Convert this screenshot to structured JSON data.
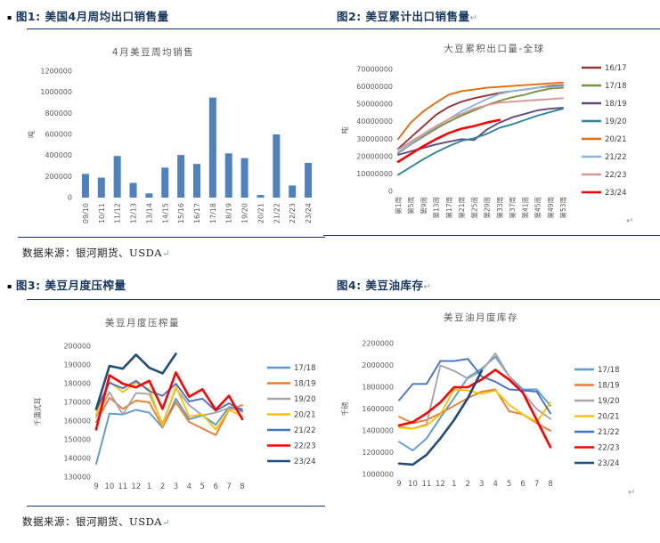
{
  "headers": {
    "fig1": {
      "label": "图1: 美国4月周均出口销售量"
    },
    "fig2": {
      "label": "图2: 美豆累计出口销售量"
    },
    "fig3": {
      "label": "图3: 美豆月度压榨量"
    },
    "fig4": {
      "label": "图4: 美豆油库存"
    }
  },
  "marks": {
    "bullet": "▪",
    "pilcrow": "↵"
  },
  "datasource": {
    "mid": "数据来源：银河期货、USDA",
    "bottom": "数据来源：银河期货、USDA"
  },
  "colors": {
    "header": "#17375E",
    "rule": "#17375E",
    "bar": "#4F81BD",
    "axis_text": "#595959"
  },
  "chart_data": [
    {
      "type": "bar",
      "title": "4月美豆周均销售",
      "ylabel": "吨",
      "ylim": [
        0,
        1200000
      ],
      "ystep": 200000,
      "grid": false,
      "legend": false,
      "bar_color": "#4F81BD",
      "categories": [
        "09/10",
        "10/11",
        "11/12",
        "12/13",
        "13/14",
        "14/15",
        "15/16",
        "16/17",
        "17/18",
        "18/19",
        "19/20",
        "20/21",
        "21/22",
        "22/23",
        "23/24"
      ],
      "values": [
        225000,
        190000,
        395000,
        140000,
        40000,
        285000,
        405000,
        320000,
        950000,
        420000,
        375000,
        25000,
        600000,
        115000,
        330000
      ]
    },
    {
      "type": "line",
      "title": "大豆累积出口量-全球",
      "ylabel": "吨",
      "ylim": [
        0,
        70000000
      ],
      "ystep": 10000000,
      "grid": false,
      "legend": true,
      "legend_position": "right",
      "xlim": [
        1,
        53
      ],
      "xticks": [
        1,
        5,
        9,
        13,
        17,
        21,
        25,
        29,
        33,
        37,
        41,
        45,
        49,
        53
      ],
      "xtick_labels": [
        "第1周",
        "第5周",
        "第9周",
        "第13周",
        "第17周",
        "第21周",
        "第25周",
        "第29周",
        "第33周",
        "第37周",
        "第41周",
        "第45周",
        "第49周",
        "第53周"
      ],
      "xtick_rotate": true,
      "series": [
        {
          "name": "16/17",
          "color": "#943634",
          "values": [
            24500000,
            31000000,
            37500000,
            44000000,
            48500000,
            51500000,
            53500000,
            55000000,
            56500000,
            57500000,
            58500000,
            59500000,
            60500000,
            61000000
          ]
        },
        {
          "name": "17/18",
          "color": "#76933C",
          "values": [
            22000000,
            27000000,
            31500000,
            36000000,
            40000000,
            43500000,
            46500000,
            49500000,
            52000000,
            54000000,
            55500000,
            57500000,
            59000000,
            59500000
          ]
        },
        {
          "name": "18/19",
          "color": "#604A7B",
          "values": [
            21000000,
            23000000,
            25000000,
            27000000,
            28500000,
            30000000,
            29500000,
            35500000,
            39500000,
            42500000,
            44500000,
            46500000,
            47500000,
            48000000
          ]
        },
        {
          "name": "19/20",
          "color": "#31859B",
          "values": [
            9500000,
            14000000,
            18500000,
            22500000,
            26000000,
            29000000,
            30500000,
            33000000,
            36500000,
            38500000,
            41000000,
            43500000,
            45500000,
            47500000
          ]
        },
        {
          "name": "20/21",
          "color": "#E26B0A",
          "values": [
            30000000,
            39500000,
            46000000,
            51000000,
            55500000,
            57500000,
            58500000,
            59500000,
            60000000,
            60500000,
            61000000,
            61500000,
            62000000,
            62500000
          ]
        },
        {
          "name": "21/22",
          "color": "#8DB4E3",
          "values": [
            22500000,
            27500000,
            32500000,
            37000000,
            41500000,
            46000000,
            49500000,
            53000000,
            56000000,
            57500000,
            58500000,
            59500000,
            60000000,
            60500000
          ]
        },
        {
          "name": "22/23",
          "color": "#D99694",
          "values": [
            24000000,
            28500000,
            33000000,
            37500000,
            41500000,
            44500000,
            47500000,
            49500000,
            51000000,
            51500000,
            52000000,
            52500000,
            53000000,
            53500000
          ]
        },
        {
          "name": "23/24",
          "color": "#FF0000",
          "width": 2.6,
          "x": [
            1,
            5,
            9,
            13,
            17,
            21,
            25,
            29,
            33
          ],
          "values": [
            17000000,
            21500000,
            26000000,
            30000000,
            33500000,
            36000000,
            37500000,
            39500000,
            41000000
          ]
        }
      ]
    },
    {
      "type": "line",
      "title": "美豆月度压榨量",
      "ylabel": "千蒲式耳",
      "ylim": [
        130000,
        200000
      ],
      "ystep": 10000,
      "grid": false,
      "legend": true,
      "legend_position": "right",
      "categories": [
        "9",
        "10",
        "11",
        "12",
        "1",
        "2",
        "3",
        "4",
        "5",
        "6",
        "7",
        "8"
      ],
      "series": [
        {
          "name": "17/18",
          "color": "#5B9BD5",
          "values": [
            137000,
            164000,
            163500,
            166000,
            164500,
            156500,
            172000,
            161000,
            163000,
            158000,
            167500,
            166500
          ]
        },
        {
          "name": "18/19",
          "color": "#ED7D31",
          "values": [
            159500,
            172500,
            166500,
            171000,
            170000,
            157000,
            170000,
            159500,
            156000,
            152500,
            166000,
            168500
          ]
        },
        {
          "name": "19/20",
          "color": "#A5A5A5",
          "values": [
            162000,
            175500,
            163500,
            175000,
            174500,
            158500,
            177500,
            168500,
            163000,
            164500,
            167000,
            165000
          ]
        },
        {
          "name": "20/21",
          "color": "#FFC000",
          "values": [
            163500,
            181000,
            175500,
            180500,
            177000,
            157500,
            178500,
            162500,
            163500,
            155500,
            166000,
            162500
          ]
        },
        {
          "name": "21/22",
          "color": "#4472C4",
          "values": [
            166000,
            180500,
            177500,
            181500,
            176000,
            173500,
            180000,
            170500,
            172000,
            165500,
            169500,
            165500
          ]
        },
        {
          "name": "22/23",
          "color": "#FF0000",
          "width": 2.6,
          "values": [
            155500,
            184500,
            180000,
            178000,
            181500,
            166500,
            186000,
            173000,
            177000,
            166000,
            173500,
            161000
          ]
        },
        {
          "name": "23/24",
          "color": "#1F4E79",
          "width": 2.6,
          "values": [
            166500,
            189500,
            188000,
            195500,
            188500,
            185500,
            196000
          ]
        }
      ]
    },
    {
      "type": "line",
      "title": "美豆油月度库存",
      "ylabel": "千磅",
      "ylim": [
        1000000,
        2200000
      ],
      "ystep": 200000,
      "grid": false,
      "legend": true,
      "legend_position": "right",
      "categories": [
        "9",
        "10",
        "11",
        "12",
        "1",
        "2",
        "3",
        "4",
        "5",
        "6",
        "7",
        "8"
      ],
      "series": [
        {
          "name": "17/18",
          "color": "#5B9BD5",
          "values": [
            1300000,
            1220000,
            1330000,
            1520000,
            1700000,
            1890000,
            1970000,
            2080000,
            1900000,
            1780000,
            1780000,
            1630000
          ]
        },
        {
          "name": "18/19",
          "color": "#ED7D31",
          "values": [
            1530000,
            1470000,
            1500000,
            1560000,
            1630000,
            1700000,
            1760000,
            1780000,
            1580000,
            1550000,
            1470000,
            1400000
          ]
        },
        {
          "name": "19/20",
          "color": "#A5A5A5",
          "values": [
            1440000,
            1420000,
            1460000,
            2000000,
            1950000,
            1880000,
            1950000,
            2110000,
            1900000,
            1750000,
            1600000,
            1510000
          ]
        },
        {
          "name": "20/21",
          "color": "#FFC000",
          "values": [
            1430000,
            1420000,
            1450000,
            1550000,
            1780000,
            1770000,
            1740000,
            1770000,
            1640000,
            1550000,
            1480000,
            1660000
          ]
        },
        {
          "name": "21/22",
          "color": "#4472C4",
          "values": [
            1680000,
            1830000,
            1830000,
            2040000,
            2040000,
            2060000,
            1900000,
            1850000,
            1780000,
            1770000,
            1760000,
            1560000
          ]
        },
        {
          "name": "22/23",
          "color": "#FF0000",
          "width": 2.6,
          "values": [
            1450000,
            1480000,
            1560000,
            1660000,
            1800000,
            1800000,
            1870000,
            1960000,
            1870000,
            1750000,
            1500000,
            1250000
          ]
        },
        {
          "name": "23/24",
          "color": "#1F4E79",
          "width": 2.6,
          "values": [
            1100000,
            1090000,
            1180000,
            1330000,
            1500000,
            1700000,
            1950000
          ]
        }
      ]
    }
  ]
}
